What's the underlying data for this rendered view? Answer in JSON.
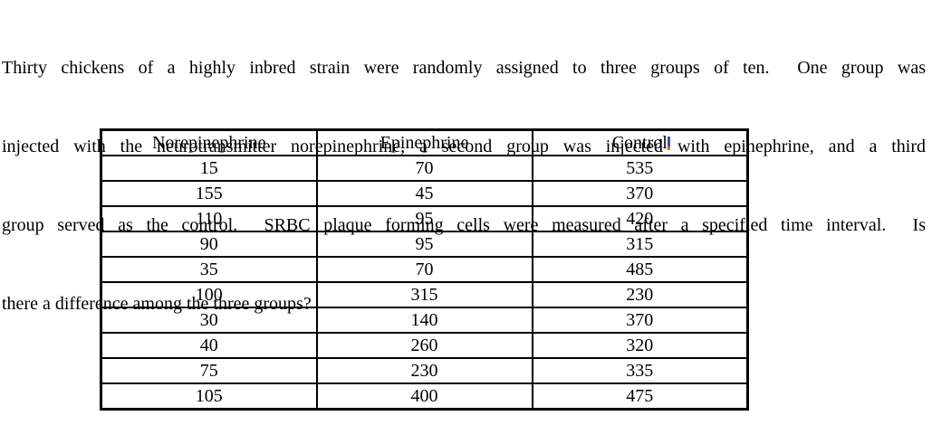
{
  "page": {
    "background": "#ffffff",
    "text_color": "#000000"
  },
  "problem": {
    "lines": [
      "Thirty chickens of a highly inbred strain were randomly assigned to three groups of ten.  One group was",
      "injected with the neurotransmitter norepinephrine, a second group was injected with epinephrine, and a third",
      "group served as the control.  SRBC plaque forming cells were measured after a specified time interval.  Is",
      "there a difference among the three groups?"
    ],
    "full_text": "Thirty chickens of a highly inbred strain were randomly assigned to three groups of ten.  One group was injected with the neurotransmitter norepinephrine, a second group was injected with epinephrine, and a third group served as the control.  SRBC plaque forming cells were measured after a specified time interval.  Is there a difference among the three groups?"
  },
  "table": {
    "headers": [
      "Norepinephrine",
      "Epinephrine",
      "Control"
    ],
    "rows": [
      [
        "15",
        "70",
        "535"
      ],
      [
        "155",
        "45",
        "370"
      ],
      [
        "110",
        "95",
        "420"
      ],
      [
        "90",
        "95",
        "315"
      ],
      [
        "35",
        "70",
        "485"
      ],
      [
        "100",
        "315",
        "230"
      ],
      [
        "30",
        "140",
        "370"
      ],
      [
        "40",
        "260",
        "320"
      ],
      [
        "75",
        "230",
        "335"
      ],
      [
        "105",
        "400",
        "475"
      ]
    ],
    "border_color": "#000000"
  },
  "artifacts": {
    "text_cursor_top_color": "#3b4fb0",
    "text_cursor_tip_color": "#d4732c"
  }
}
